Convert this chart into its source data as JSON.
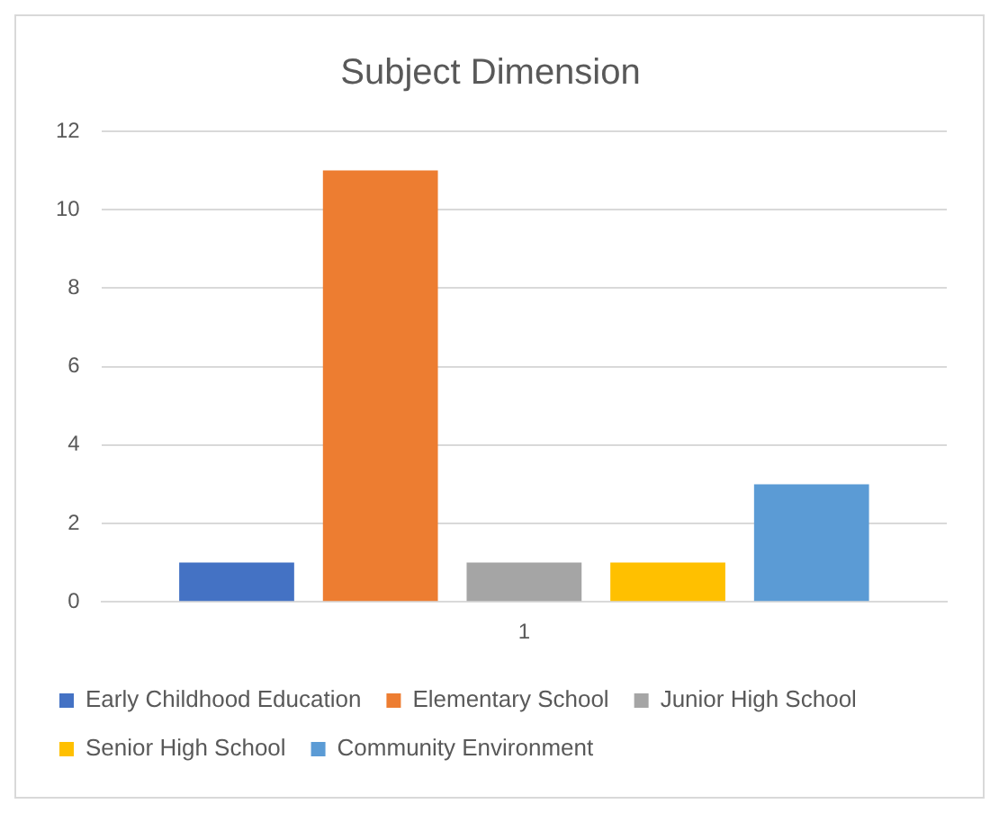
{
  "chart_data": {
    "type": "bar",
    "title": "Subject Dimension",
    "categories": [
      "1"
    ],
    "series": [
      {
        "name": "Early Childhood Education",
        "color": "#4472c4",
        "values": [
          1
        ]
      },
      {
        "name": "Elementary School",
        "color": "#ed7d31",
        "values": [
          11
        ]
      },
      {
        "name": "Junior High School",
        "color": "#a5a5a5",
        "values": [
          1
        ]
      },
      {
        "name": "Senior High School",
        "color": "#ffc000",
        "values": [
          1
        ]
      },
      {
        "name": "Community Environment",
        "color": "#5b9bd5",
        "values": [
          3
        ]
      }
    ],
    "ylim": [
      0,
      12
    ],
    "yticks": [
      0,
      2,
      4,
      6,
      8,
      10,
      12
    ],
    "grid": "y",
    "legend": "bottom"
  }
}
